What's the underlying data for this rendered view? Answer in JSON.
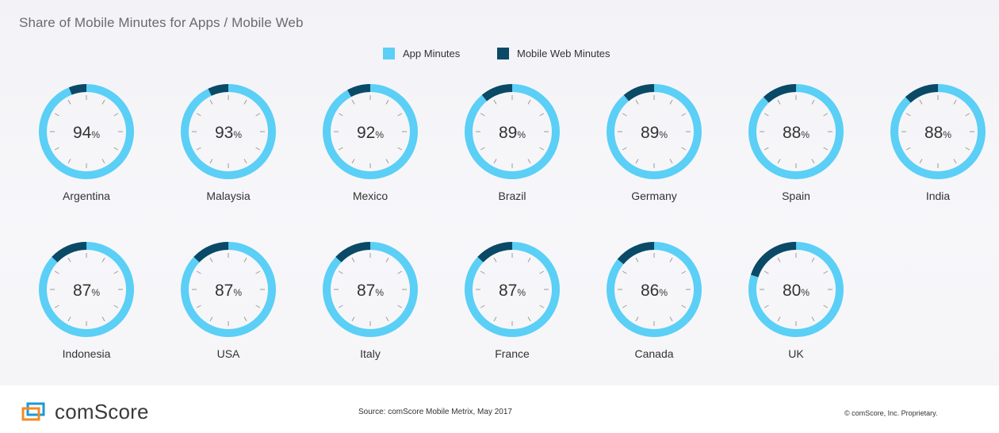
{
  "header": {
    "title": "Share of Mobile Minutes for Apps / Mobile Web"
  },
  "legend": {
    "items": [
      {
        "label": "App Minutes",
        "color": "#5bcff6"
      },
      {
        "label": "Mobile Web Minutes",
        "color": "#0b4a66"
      }
    ]
  },
  "chart_data": {
    "type": "donut-grid",
    "title": "Share of Mobile Minutes for Apps / Mobile Web",
    "series": [
      {
        "name": "App Minutes",
        "color": "#5bcff6"
      },
      {
        "name": "Mobile Web Minutes",
        "color": "#0b4a66"
      }
    ],
    "unit": "%",
    "categories": [
      "Argentina",
      "Malaysia",
      "Mexico",
      "Brazil",
      "Germany",
      "Spain",
      "India",
      "Indonesia",
      "USA",
      "Italy",
      "France",
      "Canada",
      "UK"
    ],
    "values": [
      94,
      93,
      92,
      89,
      89,
      88,
      88,
      87,
      87,
      87,
      87,
      86,
      80
    ]
  },
  "footer": {
    "logo_text": "comScore",
    "source": "Source: comScore Mobile Metrix, May 2017",
    "copyright": "© comScore, Inc. Proprietary."
  }
}
